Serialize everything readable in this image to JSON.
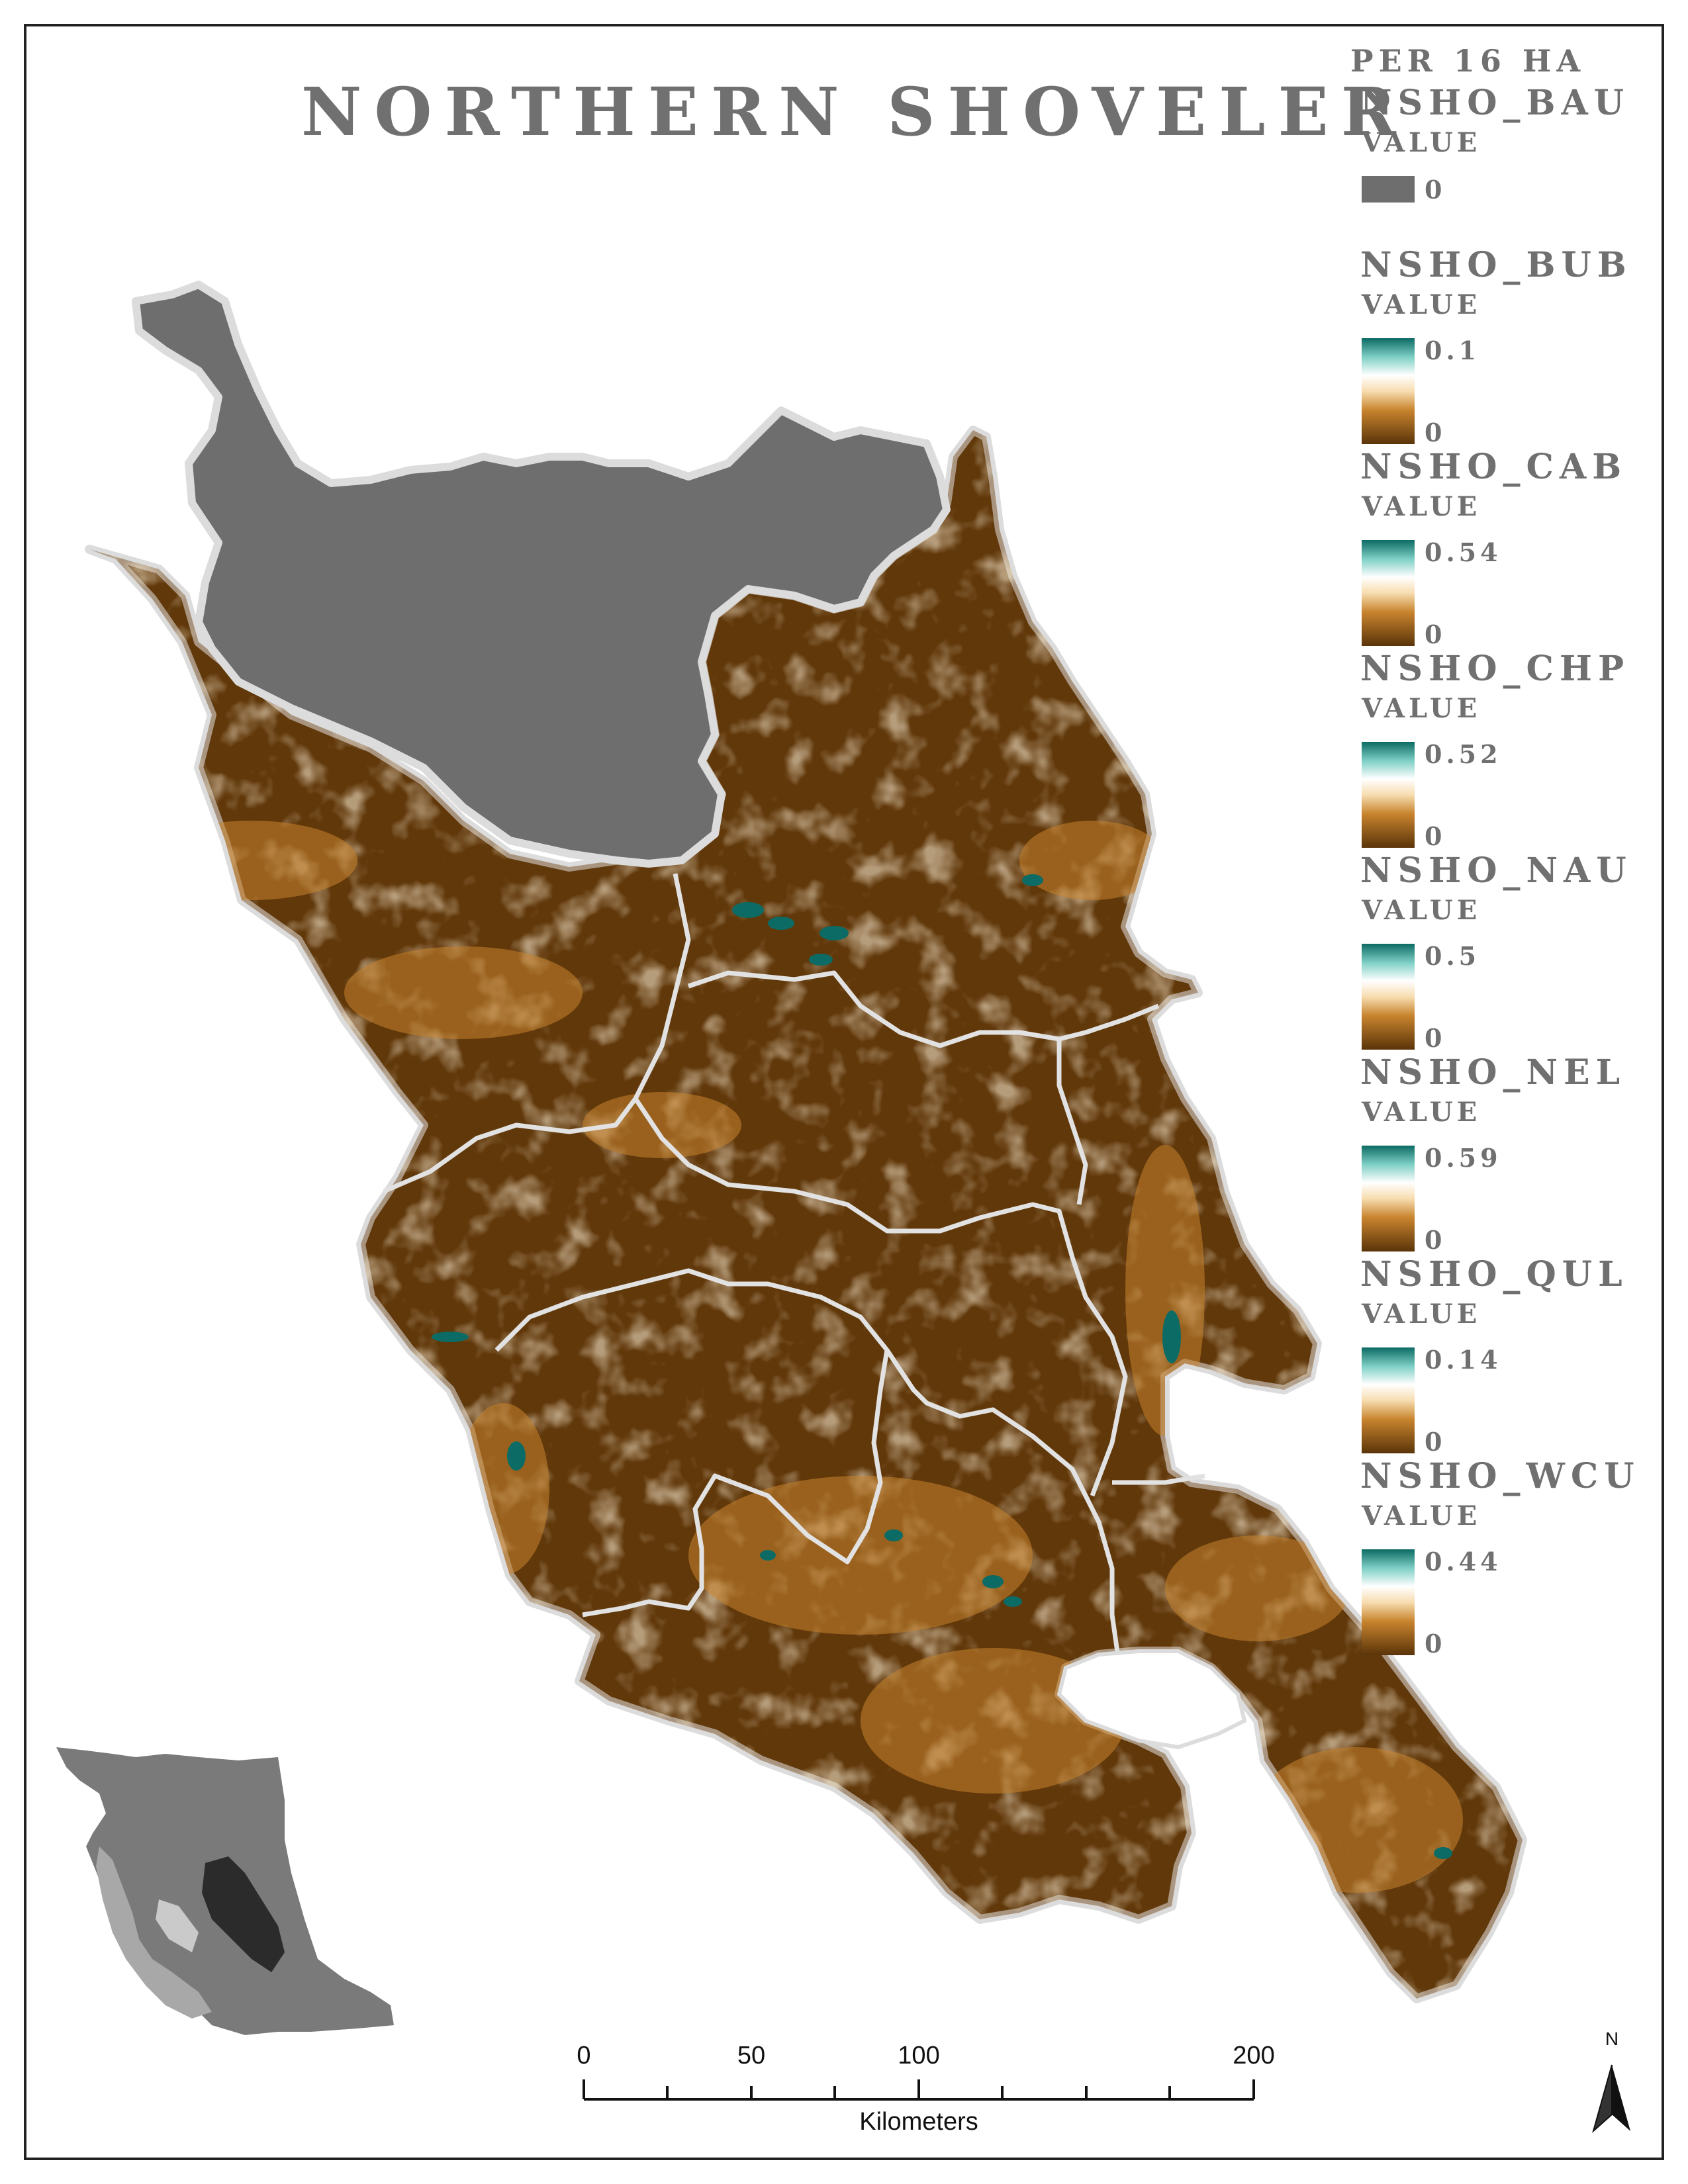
{
  "map": {
    "title": "NORTHERN SHOVELER",
    "colors": {
      "gray_region": "#6e6e6e",
      "brown_low": "#5a3409",
      "brown_mid": "#8a5418",
      "tan": "#c8842e",
      "cream": "#f7ddb0",
      "teal_high": "#0c6b64",
      "boundary": "#e0e0e0"
    }
  },
  "legend": {
    "header": "PER 16 HA",
    "value_label": "VALUE",
    "layers": [
      {
        "name": "NSHO_BAU",
        "max": "",
        "min": "0",
        "type": "single"
      },
      {
        "name": "NSHO_BUB",
        "max": "0.1",
        "min": "0",
        "type": "ramp"
      },
      {
        "name": "NSHO_CAB",
        "max": "0.54",
        "min": "0",
        "type": "ramp"
      },
      {
        "name": "NSHO_CHP",
        "max": "0.52",
        "min": "0",
        "type": "ramp"
      },
      {
        "name": "NSHO_NAU",
        "max": "0.5",
        "min": "0",
        "type": "ramp"
      },
      {
        "name": "NSHO_NEL",
        "max": "0.59",
        "min": "0",
        "type": "ramp"
      },
      {
        "name": "NSHO_QUL",
        "max": "0.14",
        "min": "0",
        "type": "ramp"
      },
      {
        "name": "NSHO_WCU",
        "max": "0.44",
        "min": "0",
        "type": "ramp"
      }
    ]
  },
  "scale_bar": {
    "labels": [
      "0",
      "50",
      "100",
      "200"
    ],
    "unit": "Kilometers"
  },
  "north_arrow": {
    "label": "N"
  },
  "inset_map": {
    "icon": "locator-map-icon"
  }
}
